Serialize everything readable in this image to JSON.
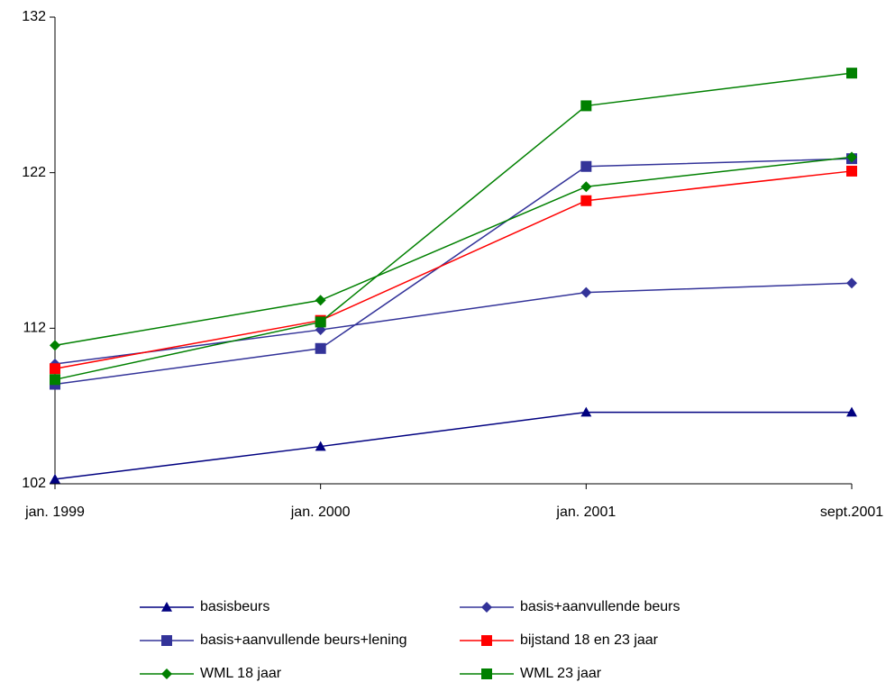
{
  "chart_data": {
    "type": "line",
    "categories": [
      "jan. 1999",
      "jan. 2000",
      "jan. 2001",
      "sept.2001"
    ],
    "series": [
      {
        "name": "basisbeurs",
        "color": "#000080",
        "marker": "triangle",
        "values": [
          102.3,
          104.4,
          106.6,
          106.6
        ]
      },
      {
        "name": "basis+aanvullende beurs",
        "color": "#333399",
        "marker": "diamond",
        "values": [
          109.7,
          111.9,
          114.3,
          114.9
        ]
      },
      {
        "name": "basis+aanvullende beurs+lening",
        "color": "#333399",
        "marker": "square",
        "values": [
          108.4,
          110.7,
          122.4,
          122.9
        ]
      },
      {
        "name": "bijstand 18 en 23 jaar",
        "color": "#ff0000",
        "marker": "square",
        "values": [
          109.4,
          112.5,
          120.2,
          122.1
        ]
      },
      {
        "name": "WML 18 jaar",
        "color": "#008000",
        "marker": "diamond",
        "values": [
          110.9,
          113.8,
          121.1,
          123.0
        ]
      },
      {
        "name": "WML 23 jaar",
        "color": "#008000",
        "marker": "square",
        "values": [
          108.7,
          112.4,
          126.3,
          128.4
        ]
      }
    ],
    "ylim": [
      102,
      132
    ],
    "yticks": [
      102,
      112,
      122,
      132
    ],
    "grid": false
  }
}
